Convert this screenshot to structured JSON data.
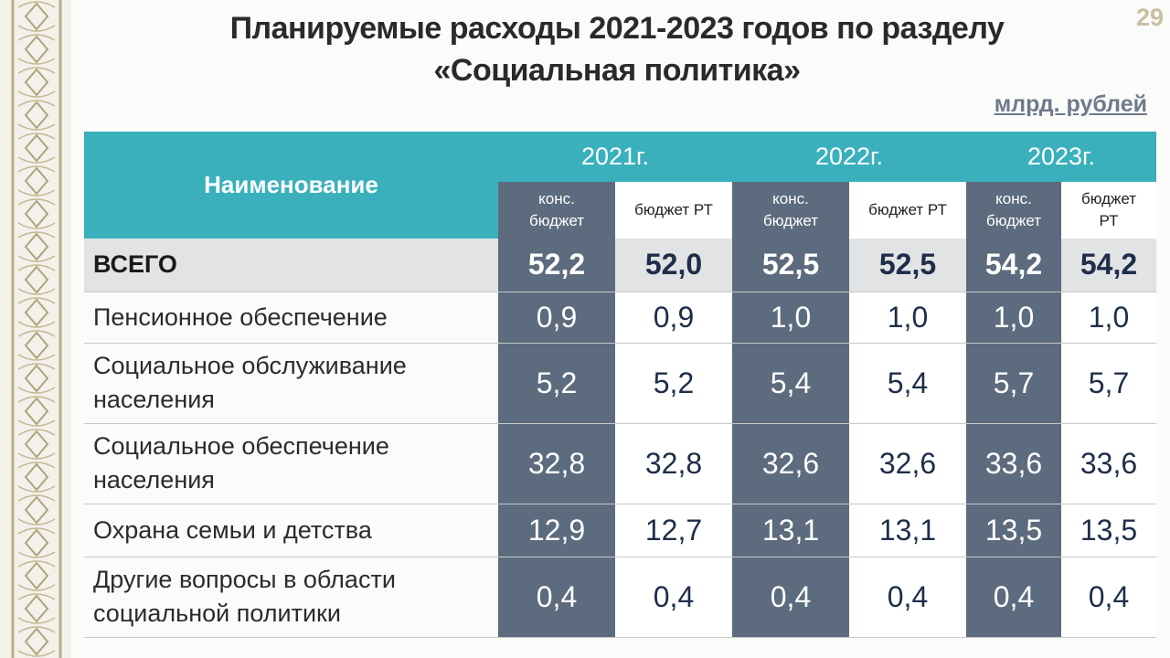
{
  "slide": {
    "title_line1": "Планируемые расходы 2021-2023 годов по разделу",
    "title_line2": "«Социальная политика»",
    "page_number": "29",
    "units": "млрд. рублей"
  },
  "table": {
    "name_header": "Наименование",
    "years": [
      "2021г.",
      "2022г.",
      "2023г."
    ],
    "sub_headers": [
      {
        "line1": "конс.",
        "line2": "бюджет"
      },
      {
        "line1": "бюджет РТ",
        "line2": ""
      },
      {
        "line1": "конс.",
        "line2": "бюджет"
      },
      {
        "line1": "бюджет РТ",
        "line2": ""
      },
      {
        "line1": "конс.",
        "line2": "бюджет"
      },
      {
        "line1": "бюджет",
        "line2": "РТ"
      }
    ],
    "rows": [
      {
        "label_line1": "ВСЕГО",
        "label_line2": "",
        "values": [
          "52,2",
          "52,0",
          "52,5",
          "52,5",
          "54,2",
          "54,2"
        ]
      },
      {
        "label_line1": "Пенсионное обеспечение",
        "label_line2": "",
        "values": [
          "0,9",
          "0,9",
          "1,0",
          "1,0",
          "1,0",
          "1,0"
        ]
      },
      {
        "label_line1": "Социальное обслуживание",
        "label_line2": "населения",
        "values": [
          "5,2",
          "5,2",
          "5,4",
          "5,4",
          "5,7",
          "5,7"
        ]
      },
      {
        "label_line1": "Социальное обеспечение",
        "label_line2": "населения",
        "values": [
          "32,8",
          "32,8",
          "32,6",
          "32,6",
          "33,6",
          "33,6"
        ]
      },
      {
        "label_line1": "Охрана семьи и детства",
        "label_line2": "",
        "values": [
          "12,9",
          "12,7",
          "13,1",
          "13,1",
          "13,5",
          "13,5"
        ]
      },
      {
        "label_line1": "Другие вопросы в области",
        "label_line2": "социальной политики",
        "values": [
          "0,4",
          "0,4",
          "0,4",
          "0,4",
          "0,4",
          "0,4"
        ]
      }
    ]
  }
}
